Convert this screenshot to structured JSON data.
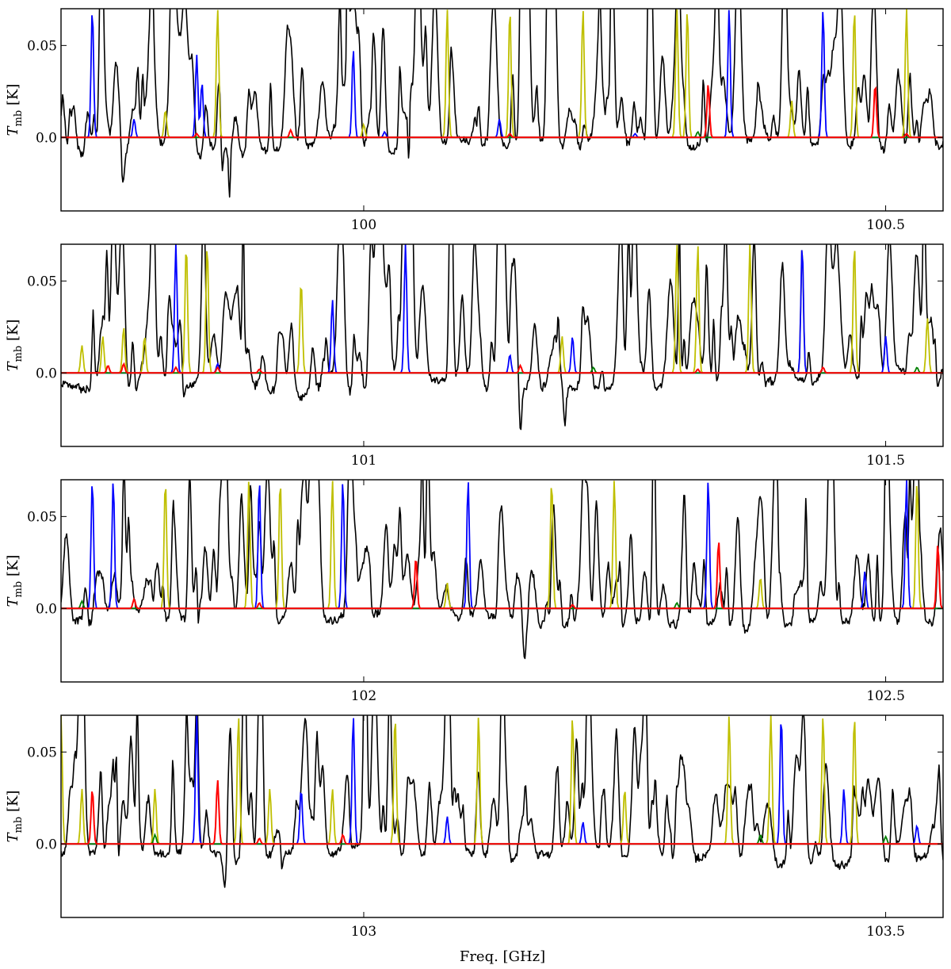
{
  "figure": {
    "xlabel": "Freq. [GHz]",
    "ylabel": "T_mb [K]",
    "colors": {
      "observed": "#000000",
      "model_red": "#ff0000",
      "model_blue": "#0000ff",
      "model_yellow": "#bfbf00",
      "model_green": "#008000"
    }
  },
  "chart_data": [
    {
      "type": "line",
      "xlim": [
        99.71,
        100.555
      ],
      "ylim": [
        -0.04,
        0.07
      ],
      "xticks": [
        100,
        100.5
      ],
      "xtick_labels": [
        "100",
        "100.5"
      ],
      "yticks": [
        0.0,
        0.05
      ],
      "ytick_labels": [
        "0.0",
        "0.05"
      ],
      "series": [
        {
          "color": "red",
          "peaks": [
            [
              100.33,
              0.029
            ],
            [
              100.49,
              0.029
            ],
            [
              99.93,
              0.004
            ],
            [
              99.84,
              0.002
            ],
            [
              100.14,
              0.002
            ],
            [
              100.52,
              0.002
            ]
          ]
        },
        {
          "color": "blue",
          "peaks": [
            [
              99.74,
              0.07
            ],
            [
              99.84,
              0.045
            ],
            [
              99.845,
              0.03
            ],
            [
              99.99,
              0.048
            ],
            [
              100.35,
              0.07
            ],
            [
              100.44,
              0.07
            ],
            [
              99.78,
              0.01
            ],
            [
              100.02,
              0.003
            ],
            [
              100.13,
              0.01
            ],
            [
              100.26,
              0.002
            ]
          ]
        },
        {
          "color": "yellow",
          "peaks": [
            [
              99.86,
              0.07
            ],
            [
              100.08,
              0.07
            ],
            [
              100.14,
              0.07
            ],
            [
              100.21,
              0.07
            ],
            [
              100.3,
              0.07
            ],
            [
              100.31,
              0.07
            ],
            [
              100.47,
              0.07
            ],
            [
              100.52,
              0.07
            ],
            [
              100.41,
              0.02
            ],
            [
              100.0,
              0.007
            ],
            [
              99.81,
              0.015
            ]
          ]
        },
        {
          "color": "green",
          "peaks": [
            [
              100.32,
              0.003
            ]
          ]
        }
      ]
    },
    {
      "type": "line",
      "xlim": [
        100.71,
        101.555
      ],
      "ylim": [
        -0.04,
        0.07
      ],
      "xticks": [
        101,
        101.5
      ],
      "xtick_labels": [
        "101",
        "101.5"
      ],
      "yticks": [
        0.0,
        0.05
      ],
      "ytick_labels": [
        "0.0",
        "0.05"
      ],
      "series": [
        {
          "color": "red",
          "peaks": [
            [
              100.755,
              0.004
            ],
            [
              100.77,
              0.005
            ],
            [
              100.82,
              0.003
            ],
            [
              100.86,
              0.003
            ],
            [
              100.9,
              0.002
            ],
            [
              101.15,
              0.004
            ],
            [
              101.32,
              0.002
            ],
            [
              101.44,
              0.003
            ]
          ]
        },
        {
          "color": "blue",
          "peaks": [
            [
              100.82,
              0.07
            ],
            [
              100.97,
              0.04
            ],
            [
              101.04,
              0.07
            ],
            [
              101.14,
              0.01
            ],
            [
              101.2,
              0.02
            ],
            [
              101.42,
              0.07
            ],
            [
              101.5,
              0.02
            ],
            [
              100.86,
              0.005
            ]
          ]
        },
        {
          "color": "yellow",
          "peaks": [
            [
              100.73,
              0.015
            ],
            [
              100.75,
              0.02
            ],
            [
              100.77,
              0.025
            ],
            [
              100.79,
              0.02
            ],
            [
              100.83,
              0.07
            ],
            [
              100.85,
              0.07
            ],
            [
              100.94,
              0.05
            ],
            [
              101.19,
              0.02
            ],
            [
              101.3,
              0.07
            ],
            [
              101.32,
              0.07
            ],
            [
              101.37,
              0.07
            ],
            [
              101.42,
              0.07
            ],
            [
              101.47,
              0.07
            ],
            [
              101.54,
              0.03
            ]
          ]
        },
        {
          "color": "green",
          "peaks": [
            [
              101.22,
              0.003
            ],
            [
              101.53,
              0.003
            ]
          ]
        }
      ]
    },
    {
      "type": "line",
      "xlim": [
        101.71,
        102.555
      ],
      "ylim": [
        -0.04,
        0.07
      ],
      "xticks": [
        102,
        102.5
      ],
      "xtick_labels": [
        "102",
        "102.5"
      ],
      "yticks": [
        0.0,
        0.05
      ],
      "ytick_labels": [
        "0.0",
        "0.05"
      ],
      "series": [
        {
          "color": "red",
          "peaks": [
            [
              101.78,
              0.005
            ],
            [
              102.05,
              0.028
            ],
            [
              102.34,
              0.037
            ],
            [
              102.55,
              0.035
            ],
            [
              101.9,
              0.003
            ],
            [
              102.2,
              0.002
            ]
          ]
        },
        {
          "color": "blue",
          "peaks": [
            [
              101.74,
              0.07
            ],
            [
              101.76,
              0.07
            ],
            [
              101.9,
              0.07
            ],
            [
              101.98,
              0.07
            ],
            [
              102.1,
              0.07
            ],
            [
              102.33,
              0.07
            ],
            [
              102.52,
              0.07
            ],
            [
              102.48,
              0.02
            ]
          ]
        },
        {
          "color": "yellow",
          "peaks": [
            [
              101.81,
              0.07
            ],
            [
              101.89,
              0.07
            ],
            [
              101.92,
              0.07
            ],
            [
              101.97,
              0.07
            ],
            [
              102.18,
              0.07
            ],
            [
              102.24,
              0.07
            ],
            [
              102.53,
              0.07
            ],
            [
              102.08,
              0.014
            ],
            [
              102.38,
              0.017
            ]
          ]
        },
        {
          "color": "green",
          "peaks": [
            [
              101.73,
              0.004
            ],
            [
              102.3,
              0.003
            ]
          ]
        }
      ]
    },
    {
      "type": "line",
      "xlim": [
        102.71,
        103.555
      ],
      "ylim": [
        -0.04,
        0.07
      ],
      "xticks": [
        103,
        103.5
      ],
      "xtick_labels": [
        "103",
        "103.5"
      ],
      "yticks": [
        0.0,
        0.05
      ],
      "ytick_labels": [
        "0.0",
        "0.05"
      ],
      "series": [
        {
          "color": "red",
          "peaks": [
            [
              102.74,
              0.03
            ],
            [
              102.86,
              0.035
            ],
            [
              102.98,
              0.005
            ],
            [
              102.9,
              0.003
            ]
          ]
        },
        {
          "color": "blue",
          "peaks": [
            [
              102.84,
              0.07
            ],
            [
              102.94,
              0.03
            ],
            [
              102.99,
              0.07
            ],
            [
              103.08,
              0.015
            ],
            [
              103.21,
              0.012
            ],
            [
              103.4,
              0.07
            ],
            [
              103.46,
              0.03
            ],
            [
              103.53,
              0.01
            ]
          ]
        },
        {
          "color": "yellow",
          "peaks": [
            [
              102.71,
              0.07
            ],
            [
              102.73,
              0.03
            ],
            [
              102.8,
              0.03
            ],
            [
              102.88,
              0.07
            ],
            [
              102.91,
              0.03
            ],
            [
              102.97,
              0.03
            ],
            [
              103.03,
              0.07
            ],
            [
              103.11,
              0.07
            ],
            [
              103.2,
              0.07
            ],
            [
              103.35,
              0.07
            ],
            [
              103.39,
              0.07
            ],
            [
              103.44,
              0.07
            ],
            [
              103.47,
              0.07
            ],
            [
              103.25,
              0.03
            ]
          ]
        },
        {
          "color": "green",
          "peaks": [
            [
              102.8,
              0.005
            ],
            [
              103.38,
              0.005
            ],
            [
              103.5,
              0.004
            ]
          ]
        }
      ]
    }
  ]
}
